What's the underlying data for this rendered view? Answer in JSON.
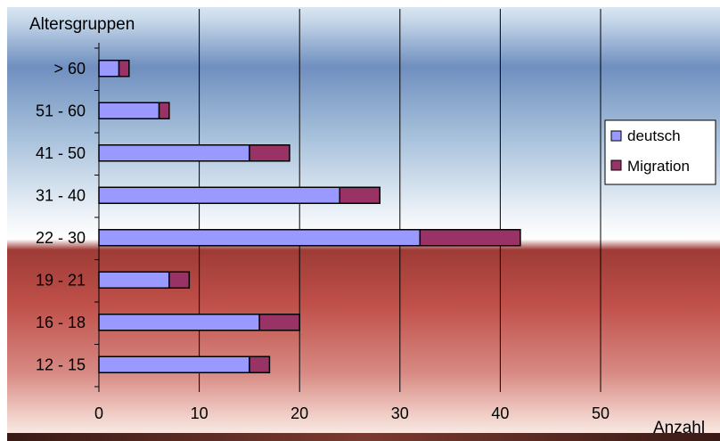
{
  "chart_data": {
    "type": "bar",
    "orientation": "horizontal",
    "stacked": true,
    "categories": [
      "12 - 15",
      "16 - 18",
      "19 - 21",
      "22 - 30",
      "31 - 40",
      "41 - 50",
      "51 - 60",
      "> 60"
    ],
    "series": [
      {
        "name": "deutsch",
        "values": [
          15,
          16,
          7,
          32,
          24,
          15,
          6,
          2
        ]
      },
      {
        "name": "Migration",
        "values": [
          2,
          4,
          2,
          10,
          4,
          4,
          1,
          1
        ]
      }
    ],
    "xlabel": "Anzahl",
    "ylabel": "Altersgruppen",
    "xlim": [
      0,
      50
    ],
    "xticks": [
      "0",
      "10",
      "20",
      "30",
      "40",
      "50"
    ],
    "grid": "vertical",
    "legend": "right",
    "colors": {
      "deutsch": "#9999ff",
      "Migration": "#993366",
      "background_top": "#6f8fbf",
      "background_bottom": "#b5443f"
    }
  }
}
